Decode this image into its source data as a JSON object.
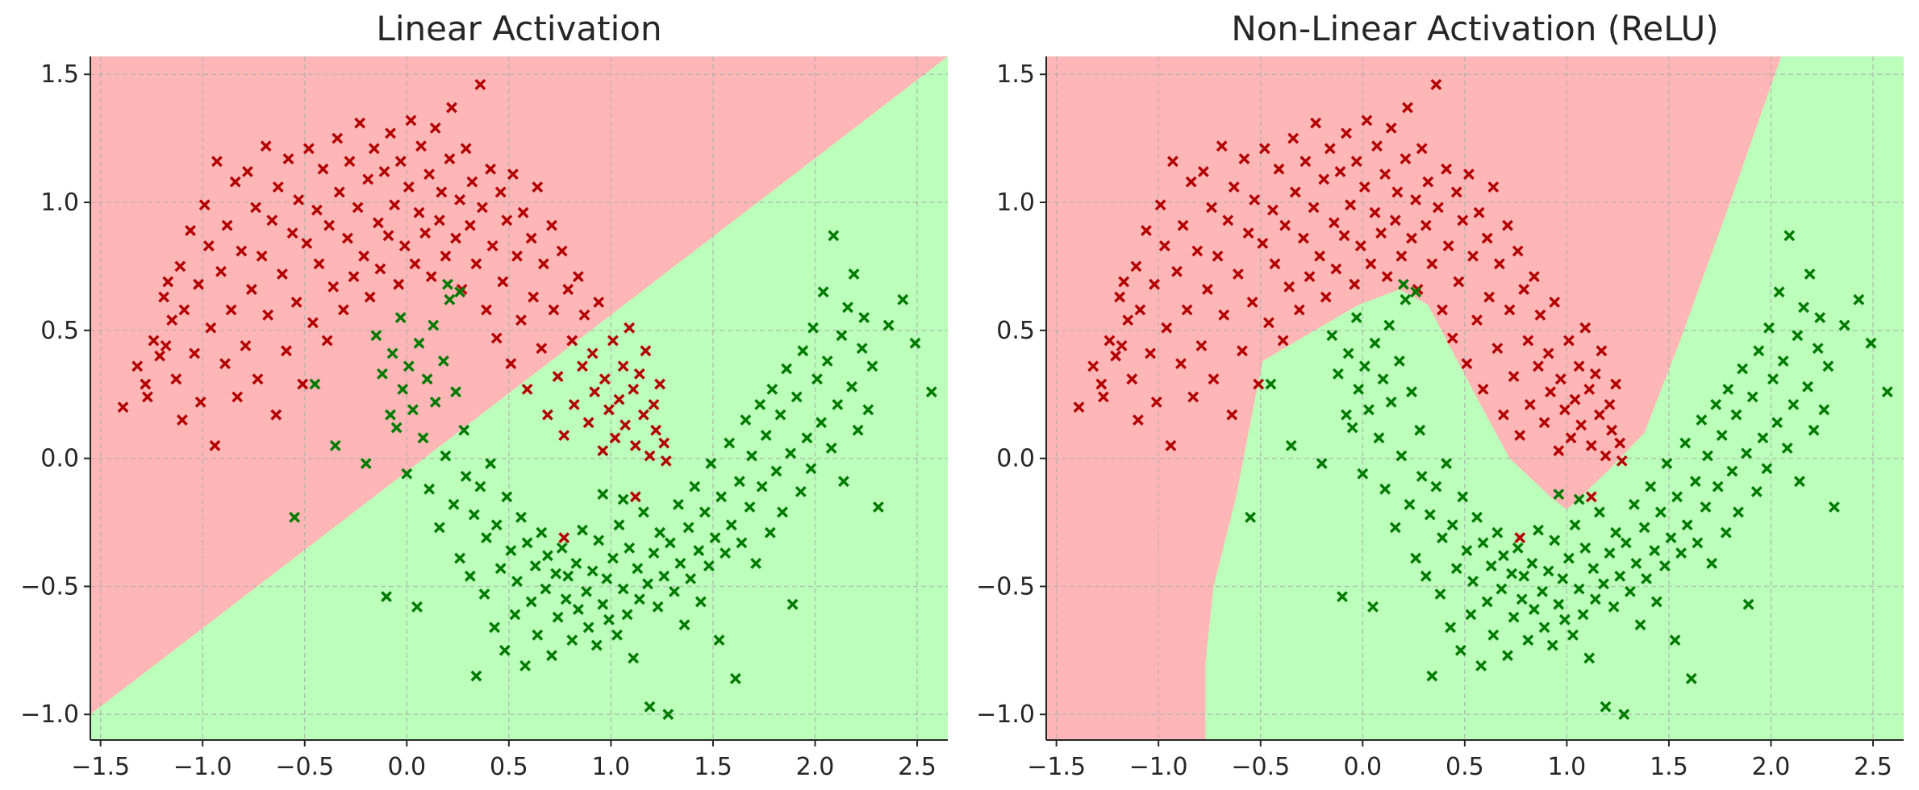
{
  "chart_data": [
    {
      "type": "scatter",
      "title": "Linear Activation",
      "xlabel": "",
      "ylabel": "",
      "xlim": [
        -1.55,
        2.65
      ],
      "ylim": [
        -1.1,
        1.57
      ],
      "xticks": [
        -1.5,
        -1.0,
        -0.5,
        0.0,
        0.5,
        1.0,
        1.5,
        2.0,
        2.5
      ],
      "yticks": [
        -1.0,
        -0.5,
        0.0,
        0.5,
        1.0,
        1.5
      ],
      "xtick_labels": [
        "−1.5",
        "−1.0",
        "−0.5",
        "0.0",
        "0.5",
        "1.0",
        "1.5",
        "2.0",
        "2.5"
      ],
      "ytick_labels": [
        "−1.0",
        "−0.5",
        "0.0",
        "0.5",
        "1.0",
        "1.5"
      ],
      "grid": true,
      "decision_regions": {
        "class_a_color": "#ffb6b6",
        "class_b_color": "#bbffbb",
        "boundary": [
          [
            -1.55,
            -1.0
          ],
          [
            2.65,
            1.57
          ]
        ],
        "class_a_side": "above"
      },
      "series": [
        {
          "color": "#b30000",
          "marker": "x",
          "dataset": "upper_moon"
        },
        {
          "color": "#007a00",
          "marker": "x",
          "dataset": "lower_moon"
        }
      ]
    },
    {
      "type": "scatter",
      "title": "Non-Linear Activation (ReLU)",
      "xlabel": "",
      "ylabel": "",
      "xlim": [
        -1.55,
        2.65
      ],
      "ylim": [
        -1.1,
        1.57
      ],
      "xticks": [
        -1.5,
        -1.0,
        -0.5,
        0.0,
        0.5,
        1.0,
        1.5,
        2.0,
        2.5
      ],
      "yticks": [
        -1.0,
        -0.5,
        0.0,
        0.5,
        1.0,
        1.5
      ],
      "xtick_labels": [
        "−1.5",
        "−1.0",
        "−0.5",
        "0.0",
        "0.5",
        "1.0",
        "1.5",
        "2.0",
        "2.5"
      ],
      "ytick_labels": [
        "−1.0",
        "−0.5",
        "0.0",
        "0.5",
        "1.0",
        "1.5"
      ],
      "grid": true,
      "decision_regions": {
        "class_a_color": "#ffb6b6",
        "class_b_color": "#bbffbb",
        "class_b_polygon": [
          [
            -0.77,
            -1.1
          ],
          [
            -0.77,
            -0.8
          ],
          [
            -0.73,
            -0.5
          ],
          [
            -0.62,
            -0.15
          ],
          [
            -0.53,
            0.22
          ],
          [
            -0.49,
            0.38
          ],
          [
            -0.3,
            0.47
          ],
          [
            -0.02,
            0.6
          ],
          [
            0.18,
            0.66
          ],
          [
            0.32,
            0.6
          ],
          [
            0.55,
            0.25
          ],
          [
            0.72,
            0.0
          ],
          [
            0.92,
            -0.15
          ],
          [
            1.0,
            -0.2
          ],
          [
            1.2,
            -0.05
          ],
          [
            1.38,
            0.1
          ],
          [
            1.55,
            0.45
          ],
          [
            1.8,
            1.0
          ],
          [
            2.05,
            1.57
          ],
          [
            2.65,
            1.57
          ],
          [
            2.65,
            -1.1
          ]
        ]
      },
      "series": [
        {
          "color": "#b30000",
          "marker": "x",
          "dataset": "upper_moon"
        },
        {
          "color": "#007a00",
          "marker": "x",
          "dataset": "lower_moon"
        }
      ]
    }
  ],
  "datasets": {
    "upper_moon": [
      [
        -1.39,
        0.2
      ],
      [
        -1.32,
        0.36
      ],
      [
        -1.28,
        0.29
      ],
      [
        -1.27,
        0.24
      ],
      [
        -1.24,
        0.46
      ],
      [
        -1.21,
        0.4
      ],
      [
        -1.19,
        0.63
      ],
      [
        -1.18,
        0.44
      ],
      [
        -1.17,
        0.69
      ],
      [
        -1.15,
        0.54
      ],
      [
        -1.13,
        0.31
      ],
      [
        -1.11,
        0.75
      ],
      [
        -1.1,
        0.15
      ],
      [
        -1.09,
        0.58
      ],
      [
        -1.06,
        0.89
      ],
      [
        -1.04,
        0.41
      ],
      [
        -1.02,
        0.68
      ],
      [
        -1.01,
        0.22
      ],
      [
        -0.99,
        0.99
      ],
      [
        -0.97,
        0.83
      ],
      [
        -0.96,
        0.51
      ],
      [
        -0.94,
        0.05
      ],
      [
        -0.93,
        1.16
      ],
      [
        -0.91,
        0.73
      ],
      [
        -0.89,
        0.37
      ],
      [
        -0.88,
        0.91
      ],
      [
        -0.86,
        0.58
      ],
      [
        -0.84,
        1.08
      ],
      [
        -0.83,
        0.24
      ],
      [
        -0.81,
        0.81
      ],
      [
        -0.79,
        0.44
      ],
      [
        -0.78,
        1.12
      ],
      [
        -0.76,
        0.66
      ],
      [
        -0.74,
        0.98
      ],
      [
        -0.73,
        0.31
      ],
      [
        -0.71,
        0.79
      ],
      [
        -0.69,
        1.22
      ],
      [
        -0.68,
        0.56
      ],
      [
        -0.66,
        0.93
      ],
      [
        -0.64,
        0.17
      ],
      [
        -0.63,
        1.06
      ],
      [
        -0.61,
        0.72
      ],
      [
        -0.59,
        0.42
      ],
      [
        -0.58,
        1.17
      ],
      [
        -0.56,
        0.88
      ],
      [
        -0.54,
        0.61
      ],
      [
        -0.53,
        1.01
      ],
      [
        -0.51,
        0.29
      ],
      [
        -0.49,
        0.84
      ],
      [
        -0.48,
        1.21
      ],
      [
        -0.46,
        0.53
      ],
      [
        -0.44,
        0.97
      ],
      [
        -0.43,
        0.76
      ],
      [
        -0.41,
        1.13
      ],
      [
        -0.39,
        0.46
      ],
      [
        -0.38,
        0.91
      ],
      [
        -0.36,
        0.67
      ],
      [
        -0.34,
        1.25
      ],
      [
        -0.33,
        1.04
      ],
      [
        -0.31,
        0.58
      ],
      [
        -0.29,
        0.86
      ],
      [
        -0.28,
        1.16
      ],
      [
        -0.26,
        0.71
      ],
      [
        -0.24,
        0.98
      ],
      [
        -0.23,
        1.31
      ],
      [
        -0.21,
        0.79
      ],
      [
        -0.19,
        1.09
      ],
      [
        -0.18,
        0.63
      ],
      [
        -0.16,
        1.21
      ],
      [
        -0.14,
        0.92
      ],
      [
        -0.13,
        0.74
      ],
      [
        -0.11,
        1.12
      ],
      [
        -0.09,
        0.87
      ],
      [
        -0.08,
        1.27
      ],
      [
        -0.06,
        0.99
      ],
      [
        -0.04,
        0.68
      ],
      [
        -0.03,
        1.16
      ],
      [
        -0.01,
        0.83
      ],
      [
        0.01,
        1.06
      ],
      [
        0.02,
        1.32
      ],
      [
        0.04,
        0.76
      ],
      [
        0.06,
        0.96
      ],
      [
        0.07,
        1.22
      ],
      [
        0.09,
        0.88
      ],
      [
        0.11,
        1.11
      ],
      [
        0.12,
        0.71
      ],
      [
        0.14,
        1.29
      ],
      [
        0.16,
        0.93
      ],
      [
        0.17,
        1.04
      ],
      [
        0.19,
        0.79
      ],
      [
        0.21,
        1.17
      ],
      [
        0.22,
        1.37
      ],
      [
        0.24,
        0.86
      ],
      [
        0.26,
        1.01
      ],
      [
        0.27,
        0.66
      ],
      [
        0.29,
        1.21
      ],
      [
        0.31,
        0.91
      ],
      [
        0.32,
        1.08
      ],
      [
        0.34,
        0.76
      ],
      [
        0.36,
        1.46
      ],
      [
        0.37,
        0.98
      ],
      [
        0.39,
        0.58
      ],
      [
        0.41,
        1.13
      ],
      [
        0.42,
        0.83
      ],
      [
        0.44,
        0.47
      ],
      [
        0.46,
        1.04
      ],
      [
        0.47,
        0.69
      ],
      [
        0.49,
        0.93
      ],
      [
        0.51,
        0.37
      ],
      [
        0.52,
        1.11
      ],
      [
        0.54,
        0.79
      ],
      [
        0.56,
        0.54
      ],
      [
        0.57,
        0.96
      ],
      [
        0.59,
        0.27
      ],
      [
        0.61,
        0.86
      ],
      [
        0.62,
        0.63
      ],
      [
        0.64,
        1.06
      ],
      [
        0.66,
        0.43
      ],
      [
        0.67,
        0.76
      ],
      [
        0.69,
        0.17
      ],
      [
        0.71,
        0.91
      ],
      [
        0.72,
        0.58
      ],
      [
        0.74,
        0.32
      ],
      [
        0.76,
        0.81
      ],
      [
        0.77,
        0.09
      ],
      [
        0.79,
        0.66
      ],
      [
        0.81,
        0.46
      ],
      [
        0.82,
        0.21
      ],
      [
        0.84,
        0.71
      ],
      [
        0.86,
        0.36
      ],
      [
        0.87,
        0.56
      ],
      [
        0.89,
        0.14
      ],
      [
        0.91,
        0.41
      ],
      [
        0.92,
        0.26
      ],
      [
        0.94,
        0.61
      ],
      [
        0.96,
        0.03
      ],
      [
        0.97,
        0.31
      ],
      [
        0.99,
        0.19
      ],
      [
        1.01,
        0.46
      ],
      [
        1.02,
        0.08
      ],
      [
        1.04,
        0.23
      ],
      [
        1.06,
        0.36
      ],
      [
        1.07,
        0.13
      ],
      [
        1.09,
        0.51
      ],
      [
        1.11,
        0.27
      ],
      [
        1.12,
        0.05
      ],
      [
        1.14,
        0.33
      ],
      [
        1.16,
        0.17
      ],
      [
        1.17,
        0.42
      ],
      [
        1.19,
        0.01
      ],
      [
        1.21,
        0.21
      ],
      [
        1.22,
        0.11
      ],
      [
        1.24,
        0.29
      ],
      [
        1.26,
        0.06
      ],
      [
        1.27,
        -0.01
      ],
      [
        0.77,
        -0.31
      ],
      [
        1.12,
        -0.15
      ]
    ],
    "lower_moon": [
      [
        -0.55,
        -0.23
      ],
      [
        -0.45,
        0.29
      ],
      [
        -0.35,
        0.05
      ],
      [
        -0.2,
        -0.02
      ],
      [
        -0.15,
        0.48
      ],
      [
        -0.12,
        0.33
      ],
      [
        -0.1,
        -0.54
      ],
      [
        -0.08,
        0.17
      ],
      [
        -0.07,
        0.41
      ],
      [
        -0.05,
        0.12
      ],
      [
        -0.03,
        0.55
      ],
      [
        -0.02,
        0.27
      ],
      [
        0.0,
        -0.06
      ],
      [
        0.01,
        0.36
      ],
      [
        0.03,
        0.19
      ],
      [
        0.05,
        -0.58
      ],
      [
        0.06,
        0.45
      ],
      [
        0.08,
        0.08
      ],
      [
        0.1,
        0.31
      ],
      [
        0.11,
        -0.12
      ],
      [
        0.13,
        0.52
      ],
      [
        0.14,
        0.22
      ],
      [
        0.16,
        -0.27
      ],
      [
        0.18,
        0.38
      ],
      [
        0.19,
        0.01
      ],
      [
        0.21,
        0.62
      ],
      [
        0.23,
        -0.18
      ],
      [
        0.24,
        0.26
      ],
      [
        0.26,
        -0.39
      ],
      [
        0.28,
        0.11
      ],
      [
        0.29,
        -0.07
      ],
      [
        0.31,
        -0.46
      ],
      [
        0.33,
        -0.22
      ],
      [
        0.34,
        -0.85
      ],
      [
        0.36,
        -0.11
      ],
      [
        0.38,
        -0.53
      ],
      [
        0.39,
        -0.31
      ],
      [
        0.41,
        -0.02
      ],
      [
        0.43,
        -0.66
      ],
      [
        0.44,
        -0.26
      ],
      [
        0.46,
        -0.43
      ],
      [
        0.48,
        -0.75
      ],
      [
        0.49,
        -0.15
      ],
      [
        0.51,
        -0.36
      ],
      [
        0.53,
        -0.61
      ],
      [
        0.54,
        -0.48
      ],
      [
        0.56,
        -0.23
      ],
      [
        0.58,
        -0.81
      ],
      [
        0.59,
        -0.33
      ],
      [
        0.61,
        -0.56
      ],
      [
        0.63,
        -0.42
      ],
      [
        0.64,
        -0.69
      ],
      [
        0.66,
        -0.29
      ],
      [
        0.68,
        -0.51
      ],
      [
        0.69,
        -0.38
      ],
      [
        0.71,
        -0.77
      ],
      [
        0.73,
        -0.45
      ],
      [
        0.74,
        -0.62
      ],
      [
        0.76,
        -0.35
      ],
      [
        0.78,
        -0.55
      ],
      [
        0.79,
        -0.46
      ],
      [
        0.81,
        -0.71
      ],
      [
        0.83,
        -0.41
      ],
      [
        0.84,
        -0.59
      ],
      [
        0.86,
        -0.28
      ],
      [
        0.88,
        -0.52
      ],
      [
        0.89,
        -0.66
      ],
      [
        0.91,
        -0.44
      ],
      [
        0.93,
        -0.73
      ],
      [
        0.94,
        -0.32
      ],
      [
        0.96,
        -0.57
      ],
      [
        0.98,
        -0.47
      ],
      [
        0.99,
        -0.63
      ],
      [
        1.01,
        -0.39
      ],
      [
        1.03,
        -0.69
      ],
      [
        1.04,
        -0.26
      ],
      [
        1.06,
        -0.51
      ],
      [
        1.08,
        -0.61
      ],
      [
        1.09,
        -0.35
      ],
      [
        1.11,
        -0.78
      ],
      [
        1.13,
        -0.43
      ],
      [
        1.14,
        -0.55
      ],
      [
        1.16,
        -0.21
      ],
      [
        1.18,
        -0.49
      ],
      [
        1.19,
        -0.97
      ],
      [
        1.21,
        -0.37
      ],
      [
        1.23,
        -0.58
      ],
      [
        1.24,
        -0.29
      ],
      [
        1.26,
        -0.46
      ],
      [
        1.28,
        -1.0
      ],
      [
        1.29,
        -0.33
      ],
      [
        1.31,
        -0.52
      ],
      [
        1.33,
        -0.18
      ],
      [
        1.34,
        -0.41
      ],
      [
        1.36,
        -0.65
      ],
      [
        1.38,
        -0.27
      ],
      [
        1.39,
        -0.47
      ],
      [
        1.41,
        -0.11
      ],
      [
        1.43,
        -0.36
      ],
      [
        1.44,
        -0.56
      ],
      [
        1.46,
        -0.21
      ],
      [
        1.48,
        -0.42
      ],
      [
        1.49,
        -0.02
      ],
      [
        1.51,
        -0.31
      ],
      [
        1.53,
        -0.71
      ],
      [
        1.54,
        -0.15
      ],
      [
        1.56,
        -0.37
      ],
      [
        1.58,
        0.06
      ],
      [
        1.59,
        -0.26
      ],
      [
        1.61,
        -0.86
      ],
      [
        1.63,
        -0.09
      ],
      [
        1.64,
        -0.33
      ],
      [
        1.66,
        0.15
      ],
      [
        1.68,
        -0.19
      ],
      [
        1.69,
        0.01
      ],
      [
        1.71,
        -0.41
      ],
      [
        1.73,
        0.21
      ],
      [
        1.74,
        -0.11
      ],
      [
        1.76,
        0.09
      ],
      [
        1.78,
        -0.29
      ],
      [
        1.79,
        0.27
      ],
      [
        1.81,
        -0.05
      ],
      [
        1.83,
        0.17
      ],
      [
        1.84,
        -0.21
      ],
      [
        1.86,
        0.35
      ],
      [
        1.88,
        0.02
      ],
      [
        1.89,
        -0.57
      ],
      [
        1.91,
        0.24
      ],
      [
        1.93,
        -0.13
      ],
      [
        1.94,
        0.42
      ],
      [
        1.96,
        0.08
      ],
      [
        1.98,
        -0.04
      ],
      [
        1.99,
        0.51
      ],
      [
        2.01,
        0.31
      ],
      [
        2.03,
        0.14
      ],
      [
        2.04,
        0.65
      ],
      [
        2.06,
        0.38
      ],
      [
        2.08,
        0.04
      ],
      [
        2.09,
        0.87
      ],
      [
        2.11,
        0.21
      ],
      [
        2.13,
        0.48
      ],
      [
        2.14,
        -0.09
      ],
      [
        2.16,
        0.59
      ],
      [
        2.18,
        0.28
      ],
      [
        2.19,
        0.72
      ],
      [
        2.21,
        0.11
      ],
      [
        2.23,
        0.43
      ],
      [
        2.24,
        0.55
      ],
      [
        2.26,
        0.19
      ],
      [
        2.28,
        0.36
      ],
      [
        2.31,
        -0.19
      ],
      [
        2.36,
        0.52
      ],
      [
        2.43,
        0.62
      ],
      [
        2.49,
        0.45
      ],
      [
        2.57,
        0.26
      ],
      [
        0.96,
        -0.14
      ],
      [
        1.06,
        -0.16
      ],
      [
        0.26,
        0.65
      ],
      [
        0.2,
        0.68
      ]
    ]
  }
}
